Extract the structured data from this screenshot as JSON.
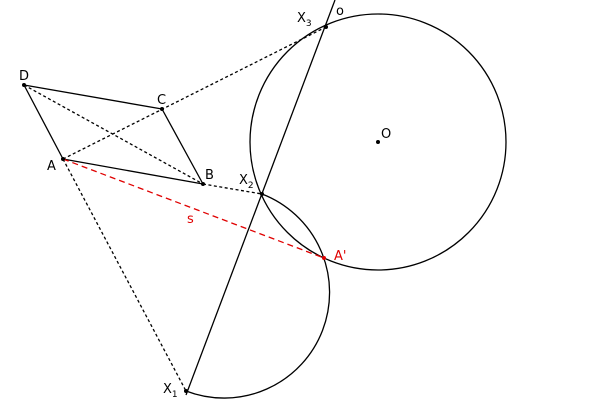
{
  "labels": {
    "D": "D",
    "C": "C",
    "A": "A",
    "B": "B",
    "O": "O",
    "o": "o",
    "s": "s",
    "A_prime": "A'",
    "X": "X",
    "sub1": "1",
    "sub2": "2",
    "sub3": "3"
  },
  "colors": {
    "stroke": "#000000",
    "highlight": "#e00000"
  }
}
